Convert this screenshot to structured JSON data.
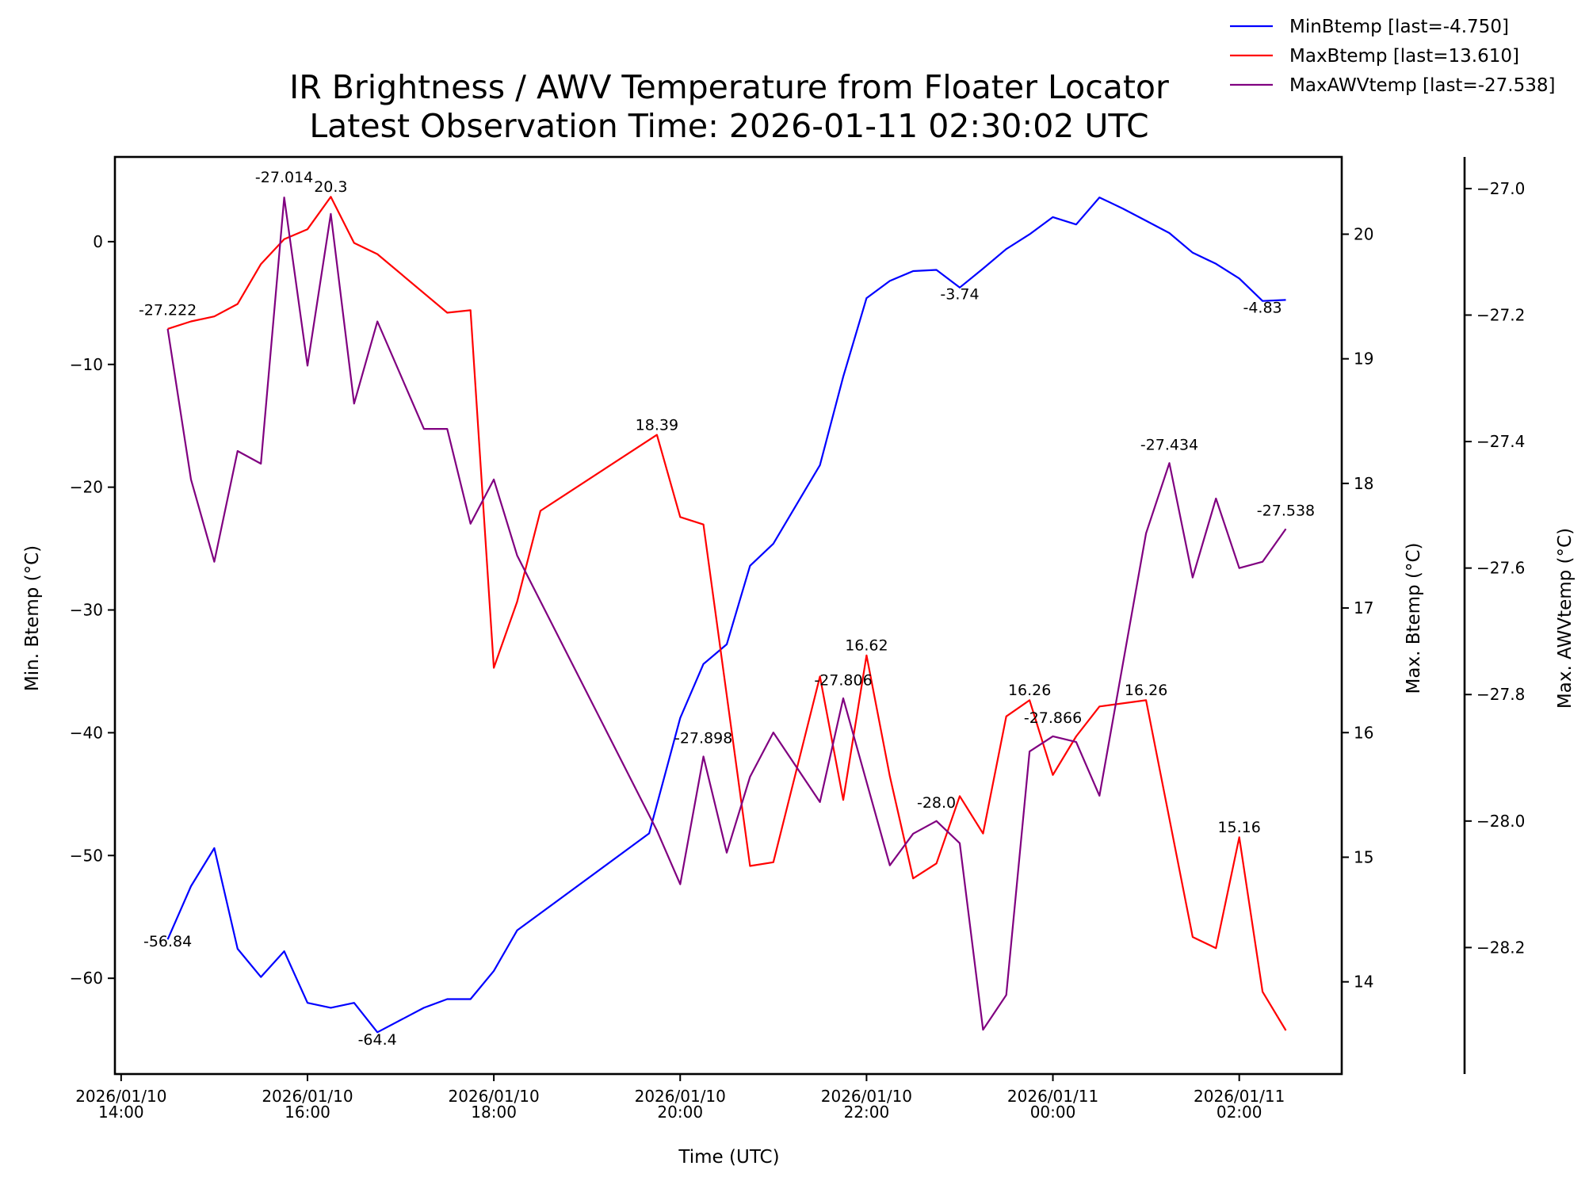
{
  "chart_data": {
    "type": "line",
    "title": [
      "IR Brightness / AWV Temperature from Floater Locator",
      "Latest Observation Time: 2026-01-11 02:30:02 UTC"
    ],
    "xlabel": "Time (UTC)",
    "x_ticks": [
      {
        "t": 0,
        "label": [
          "2026/01/10",
          "14:00"
        ]
      },
      {
        "t": 120,
        "label": [
          "2026/01/10",
          "16:00"
        ]
      },
      {
        "t": 240,
        "label": [
          "2026/01/10",
          "18:00"
        ]
      },
      {
        "t": 360,
        "label": [
          "2026/01/10",
          "20:00"
        ]
      },
      {
        "t": 480,
        "label": [
          "2026/01/10",
          "22:00"
        ]
      },
      {
        "t": 600,
        "label": [
          "2026/01/11",
          "00:00"
        ]
      },
      {
        "t": 720,
        "label": [
          "2026/01/11",
          "02:00"
        ]
      }
    ],
    "x_unit_note": "minutes since 2026/01/10 14:00 UTC",
    "xlim": [
      -4,
      786
    ],
    "axes": {
      "left": {
        "label": "Min. Btemp (°C)",
        "ylim": [
          -67.8,
          6.9
        ],
        "ticks": [
          0,
          -10,
          -20,
          -30,
          -40,
          -50,
          -60
        ],
        "tick_labels": [
          "0",
          "−10",
          "−20",
          "−30",
          "−40",
          "−50",
          "−60"
        ]
      },
      "right": {
        "label": "Max. Btemp (°C)",
        "ylim": [
          13.26,
          20.62
        ],
        "ticks": [
          14,
          15,
          16,
          17,
          18,
          19,
          20
        ],
        "tick_labels": [
          "14",
          "15",
          "16",
          "17",
          "18",
          "19",
          "20"
        ]
      },
      "outer": {
        "label": "Max. AWVtemp (°C)",
        "ylim": [
          -28.4,
          -26.95
        ],
        "ticks": [
          -27.0,
          -27.2,
          -27.4,
          -27.6,
          -27.8,
          -28.0,
          -28.2
        ],
        "tick_labels": [
          "−27.0",
          "−27.2",
          "−27.4",
          "−27.6",
          "−27.8",
          "−28.0",
          "−28.2"
        ]
      }
    },
    "series": [
      {
        "name": "MinBtemp",
        "axis": "left",
        "color": "#0000ff",
        "legend": "MinBtemp [last=-4.750]",
        "points": [
          [
            30,
            -56.84
          ],
          [
            45,
            -52.5
          ],
          [
            60,
            -49.4
          ],
          [
            75,
            -57.6
          ],
          [
            90,
            -59.9
          ],
          [
            105,
            -57.8
          ],
          [
            120,
            -62.0
          ],
          [
            135,
            -62.4
          ],
          [
            150,
            -62.0
          ],
          [
            165,
            -64.4
          ],
          [
            195,
            -62.4
          ],
          [
            210,
            -61.7
          ],
          [
            225,
            -61.7
          ],
          [
            240,
            -59.4
          ],
          [
            255,
            -56.1
          ],
          [
            340,
            -48.2
          ],
          [
            360,
            -38.8
          ],
          [
            375,
            -34.4
          ],
          [
            390,
            -32.8
          ],
          [
            405,
            -26.4
          ],
          [
            420,
            -24.6
          ],
          [
            450,
            -18.2
          ],
          [
            465,
            -11.0
          ],
          [
            480,
            -4.6
          ],
          [
            495,
            -3.2
          ],
          [
            510,
            -2.4
          ],
          [
            525,
            -2.3
          ],
          [
            540,
            -3.74
          ],
          [
            555,
            -2.2
          ],
          [
            570,
            -0.6
          ],
          [
            585,
            0.6
          ],
          [
            600,
            2.0
          ],
          [
            615,
            1.4
          ],
          [
            630,
            3.6
          ],
          [
            645,
            2.7
          ],
          [
            660,
            1.7
          ],
          [
            675,
            0.7
          ],
          [
            690,
            -0.9
          ],
          [
            705,
            -1.8
          ],
          [
            720,
            -3.0
          ],
          [
            735,
            -4.83
          ],
          [
            750,
            -4.75
          ]
        ]
      },
      {
        "name": "MaxBtemp",
        "axis": "right",
        "color": "#ff0000",
        "legend": "MaxBtemp [last=13.610]",
        "points": [
          [
            30,
            19.24
          ],
          [
            45,
            19.3
          ],
          [
            60,
            19.34
          ],
          [
            75,
            19.44
          ],
          [
            90,
            19.76
          ],
          [
            105,
            19.96
          ],
          [
            120,
            20.04
          ],
          [
            135,
            20.3
          ],
          [
            150,
            19.93
          ],
          [
            165,
            19.84
          ],
          [
            210,
            19.37
          ],
          [
            225,
            19.39
          ],
          [
            240,
            16.52
          ],
          [
            255,
            17.05
          ],
          [
            270,
            17.78
          ],
          [
            345,
            18.39
          ],
          [
            360,
            17.73
          ],
          [
            375,
            17.67
          ],
          [
            405,
            14.93
          ],
          [
            420,
            14.96
          ],
          [
            450,
            16.45
          ],
          [
            465,
            15.46
          ],
          [
            480,
            16.62
          ],
          [
            495,
            15.65
          ],
          [
            510,
            14.83
          ],
          [
            525,
            14.95
          ],
          [
            540,
            15.49
          ],
          [
            555,
            15.19
          ],
          [
            570,
            16.13
          ],
          [
            585,
            16.26
          ],
          [
            600,
            15.66
          ],
          [
            615,
            15.97
          ],
          [
            630,
            16.21
          ],
          [
            660,
            16.26
          ],
          [
            690,
            14.36
          ],
          [
            705,
            14.27
          ],
          [
            720,
            15.16
          ],
          [
            735,
            13.92
          ],
          [
            750,
            13.61
          ]
        ]
      },
      {
        "name": "MaxAWVtemp",
        "axis": "outer",
        "color": "#800080",
        "legend": "MaxAWVtemp [last=-27.538]",
        "points": [
          [
            30,
            -27.222
          ],
          [
            45,
            -27.46
          ],
          [
            60,
            -27.59
          ],
          [
            75,
            -27.415
          ],
          [
            90,
            -27.435
          ],
          [
            105,
            -27.014
          ],
          [
            120,
            -27.28
          ],
          [
            135,
            -27.04
          ],
          [
            150,
            -27.34
          ],
          [
            165,
            -27.21
          ],
          [
            195,
            -27.38
          ],
          [
            210,
            -27.38
          ],
          [
            225,
            -27.53
          ],
          [
            240,
            -27.46
          ],
          [
            255,
            -27.58
          ],
          [
            345,
            -28.015
          ],
          [
            360,
            -28.1
          ],
          [
            375,
            -27.898
          ],
          [
            390,
            -28.05
          ],
          [
            405,
            -27.93
          ],
          [
            420,
            -27.86
          ],
          [
            450,
            -27.97
          ],
          [
            465,
            -27.806
          ],
          [
            495,
            -28.07
          ],
          [
            510,
            -28.02
          ],
          [
            525,
            -28.0
          ],
          [
            540,
            -28.035
          ],
          [
            555,
            -28.33
          ],
          [
            570,
            -28.275
          ],
          [
            585,
            -27.89
          ],
          [
            600,
            -27.866
          ],
          [
            615,
            -27.875
          ],
          [
            630,
            -27.96
          ],
          [
            660,
            -27.545
          ],
          [
            675,
            -27.434
          ],
          [
            690,
            -27.615
          ],
          [
            705,
            -27.49
          ],
          [
            720,
            -27.6
          ],
          [
            735,
            -27.59
          ],
          [
            750,
            -27.538
          ]
        ]
      }
    ],
    "annotations": [
      {
        "text": "-27.222",
        "axis": "outer",
        "x": 30,
        "y": -27.2
      },
      {
        "text": "-27.014",
        "axis": "outer",
        "x": 105,
        "y": -26.99
      },
      {
        "text": "20.3",
        "axis": "right",
        "x": 135,
        "y": 20.34
      },
      {
        "text": "-56.84",
        "axis": "left",
        "x": 30,
        "y": -57.4
      },
      {
        "text": "-64.4",
        "axis": "left",
        "x": 165,
        "y": -65.4
      },
      {
        "text": "18.39",
        "axis": "right",
        "x": 345,
        "y": 18.43
      },
      {
        "text": "-27.898",
        "axis": "outer",
        "x": 375,
        "y": -27.877
      },
      {
        "text": "16.62",
        "axis": "right",
        "x": 480,
        "y": 16.66
      },
      {
        "text": "-27.806",
        "axis": "outer",
        "x": 465,
        "y": -27.785
      },
      {
        "text": "-3.74",
        "axis": "left",
        "x": 540,
        "y": -4.7
      },
      {
        "text": "-28.0",
        "axis": "outer",
        "x": 525,
        "y": -27.979
      },
      {
        "text": "16.26",
        "axis": "right",
        "x": 585,
        "y": 16.3
      },
      {
        "text": "-27.866",
        "axis": "outer",
        "x": 600,
        "y": -27.845
      },
      {
        "text": "16.26",
        "axis": "right",
        "x": 660,
        "y": 16.3
      },
      {
        "text": "-27.434",
        "axis": "outer",
        "x": 675,
        "y": -27.413
      },
      {
        "text": "-4.83",
        "axis": "left",
        "x": 735,
        "y": -5.8
      },
      {
        "text": "-27.538",
        "axis": "outer",
        "x": 750,
        "y": -27.517
      },
      {
        "text": "15.16",
        "axis": "right",
        "x": 720,
        "y": 15.2
      }
    ],
    "legend_position": "top-right"
  }
}
